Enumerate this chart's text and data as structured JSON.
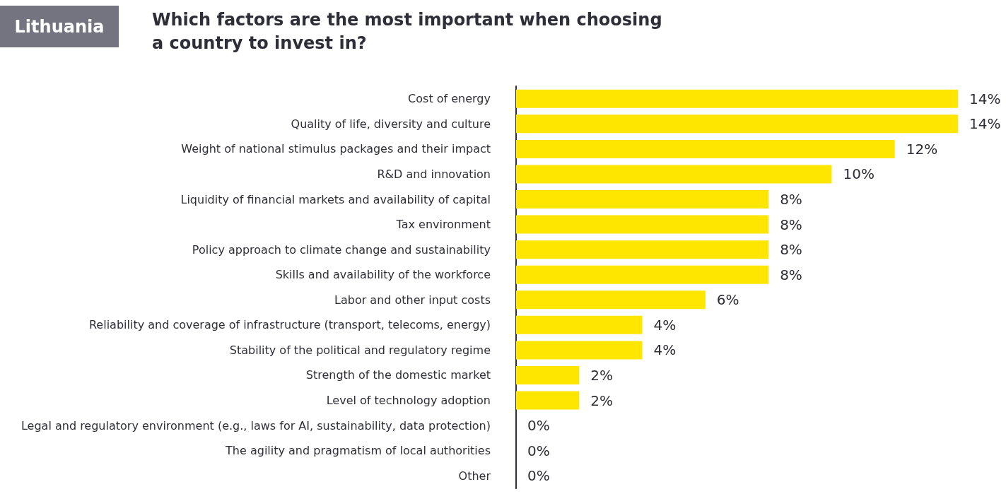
{
  "chart_data": {
    "type": "bar",
    "orientation": "horizontal",
    "title": "Which factors are the most important when choosing\na country to invest in?",
    "subtitle": "Lithuania",
    "categories": [
      "Cost of energy",
      "Quality of life, diversity and culture",
      "Weight of national stimulus packages and their impact",
      "R&D and innovation",
      "Liquidity of financial markets and availability of capital",
      "Tax environment",
      "Policy approach to climate change and sustainability",
      "Skills and availability of the workforce",
      "Labor and other input costs",
      "Reliability and coverage of infrastructure (transport, telecoms, energy)",
      "Stability of the political and regulatory regime",
      "Strength of the domestic market",
      "Level of technology adoption",
      "Legal and regulatory environment (e.g., laws for AI, sustainability, data protection)",
      "The agility and pragmatism of local authorities",
      "Other"
    ],
    "values": [
      14,
      14,
      12,
      10,
      8,
      8,
      8,
      8,
      6,
      4,
      4,
      2,
      2,
      0,
      0,
      0
    ],
    "value_labels": [
      "14%",
      "14%",
      "12%",
      "10%",
      "8%",
      "8%",
      "8%",
      "8%",
      "6%",
      "4%",
      "4%",
      "2%",
      "2%",
      "0%",
      "0%",
      "0%"
    ],
    "color": "#ffe600"
  }
}
